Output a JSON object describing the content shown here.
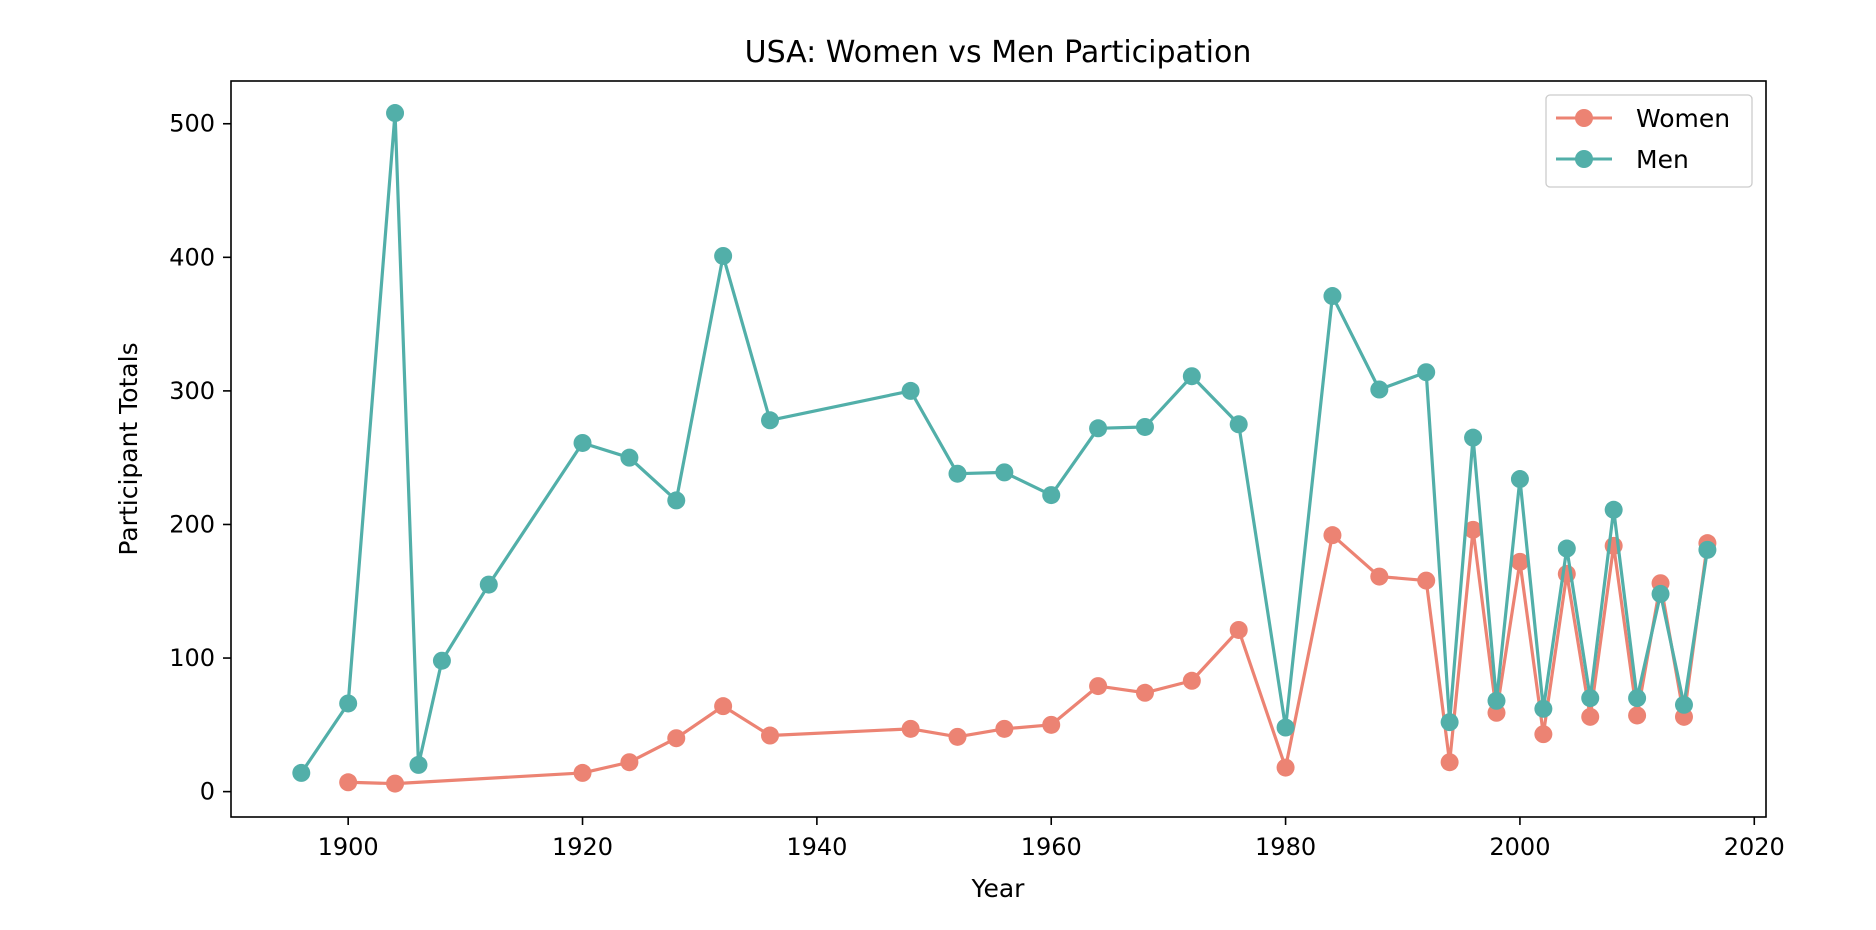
{
  "chart_data": {
    "type": "line",
    "title": "USA: Women vs Men Participation",
    "xlabel": "Year",
    "ylabel": "Participant Totals",
    "xlim": [
      1890,
      2021
    ],
    "ylim": [
      -19,
      532
    ],
    "xticks": [
      1900,
      1920,
      1940,
      1960,
      1980,
      2000,
      2020
    ],
    "yticks": [
      0,
      100,
      200,
      300,
      400,
      500
    ],
    "grid": false,
    "legend_position": "top-right",
    "series": [
      {
        "name": "Women",
        "color": "#EC8373",
        "marker": "circle",
        "points": [
          [
            1900,
            7
          ],
          [
            1904,
            6
          ],
          [
            1920,
            14
          ],
          [
            1924,
            22
          ],
          [
            1928,
            40
          ],
          [
            1932,
            64
          ],
          [
            1936,
            42
          ],
          [
            1948,
            47
          ],
          [
            1952,
            41
          ],
          [
            1956,
            47
          ],
          [
            1960,
            50
          ],
          [
            1964,
            79
          ],
          [
            1968,
            74
          ],
          [
            1972,
            83
          ],
          [
            1976,
            121
          ],
          [
            1980,
            18
          ],
          [
            1984,
            192
          ],
          [
            1988,
            161
          ],
          [
            1992,
            158
          ],
          [
            1994,
            22
          ],
          [
            1996,
            196
          ],
          [
            1998,
            59
          ],
          [
            2000,
            172
          ],
          [
            2002,
            43
          ],
          [
            2004,
            163
          ],
          [
            2006,
            56
          ],
          [
            2008,
            184
          ],
          [
            2010,
            57
          ],
          [
            2012,
            156
          ],
          [
            2014,
            56
          ],
          [
            2016,
            186
          ]
        ]
      },
      {
        "name": "Men",
        "color": "#52AFA9",
        "marker": "circle",
        "points": [
          [
            1896,
            14
          ],
          [
            1900,
            66
          ],
          [
            1904,
            508
          ],
          [
            1906,
            20
          ],
          [
            1908,
            98
          ],
          [
            1912,
            155
          ],
          [
            1920,
            261
          ],
          [
            1924,
            250
          ],
          [
            1928,
            218
          ],
          [
            1932,
            401
          ],
          [
            1936,
            278
          ],
          [
            1948,
            300
          ],
          [
            1952,
            238
          ],
          [
            1956,
            239
          ],
          [
            1960,
            222
          ],
          [
            1964,
            272
          ],
          [
            1968,
            273
          ],
          [
            1972,
            311
          ],
          [
            1976,
            275
          ],
          [
            1980,
            48
          ],
          [
            1984,
            371
          ],
          [
            1988,
            301
          ],
          [
            1992,
            314
          ],
          [
            1994,
            52
          ],
          [
            1996,
            265
          ],
          [
            1998,
            68
          ],
          [
            2000,
            234
          ],
          [
            2002,
            62
          ],
          [
            2004,
            182
          ],
          [
            2006,
            70
          ],
          [
            2008,
            211
          ],
          [
            2010,
            70
          ],
          [
            2012,
            148
          ],
          [
            2014,
            65
          ],
          [
            2016,
            181
          ]
        ]
      }
    ]
  }
}
